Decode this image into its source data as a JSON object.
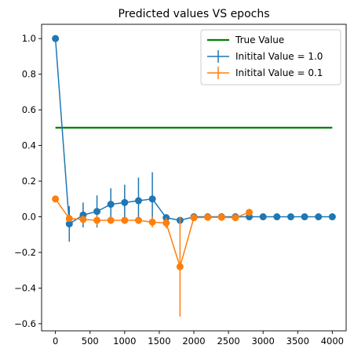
{
  "chart_data": {
    "type": "line",
    "title": "Predicted values VS epochs",
    "xlabel": "",
    "ylabel": "",
    "xlim": [
      -200,
      4200
    ],
    "ylim": [
      -0.64,
      1.08
    ],
    "xticks": [
      0,
      500,
      1000,
      1500,
      2000,
      2500,
      3000,
      3500,
      4000
    ],
    "yticks": [
      -0.6,
      -0.4,
      -0.2,
      0.0,
      0.2,
      0.4,
      0.6,
      0.8,
      1.0
    ],
    "xtick_labels": [
      "0",
      "500",
      "1000",
      "1500",
      "2000",
      "2500",
      "3000",
      "3500",
      "4000"
    ],
    "ytick_labels": [
      "−0.6",
      "−0.4",
      "−0.2",
      "0.0",
      "0.2",
      "0.4",
      "0.6",
      "0.8",
      "1.0"
    ],
    "legend_position": "top-right",
    "reference_line": {
      "name": "True Value",
      "color": "#008000",
      "x": [
        0,
        4000
      ],
      "y": [
        0.5,
        0.5
      ]
    },
    "series": [
      {
        "name": "Initital Value = 1.0",
        "color": "#1f77b4",
        "x": [
          0,
          200,
          400,
          600,
          800,
          1000,
          1200,
          1400,
          1600,
          1800,
          2000,
          2200,
          2400,
          2600,
          2800,
          3000,
          3200,
          3400,
          3600,
          3800,
          4000
        ],
        "y": [
          1.0,
          -0.04,
          0.01,
          0.03,
          0.07,
          0.08,
          0.09,
          0.1,
          -0.005,
          -0.02,
          0.0,
          0.0,
          0.0,
          0.0,
          0.0,
          0.0,
          0.0,
          0.0,
          0.0,
          0.0,
          0.0
        ],
        "yerr": [
          0.0,
          0.1,
          0.07,
          0.09,
          0.09,
          0.1,
          0.13,
          0.15,
          0.0,
          0.005,
          0.0,
          0.0,
          0.0,
          0.0,
          0.0,
          0.0,
          0.0,
          0.0,
          0.0,
          0.0,
          0.0
        ]
      },
      {
        "name": "Initital Value = 0.1",
        "color": "#ff7f0e",
        "x": [
          0,
          200,
          400,
          600,
          800,
          1000,
          1200,
          1400,
          1600,
          1800,
          2000,
          2200,
          2400,
          2600,
          2800
        ],
        "y": [
          0.1,
          -0.01,
          -0.015,
          -0.02,
          -0.02,
          -0.02,
          -0.02,
          -0.03,
          -0.035,
          -0.28,
          -0.005,
          -0.003,
          -0.003,
          -0.005,
          0.025
        ],
        "yerr": [
          0.0,
          0.01,
          0.01,
          0.03,
          0.02,
          0.02,
          0.02,
          0.03,
          0.03,
          0.28,
          0.005,
          0.003,
          0.003,
          0.005,
          0.0
        ]
      }
    ]
  }
}
